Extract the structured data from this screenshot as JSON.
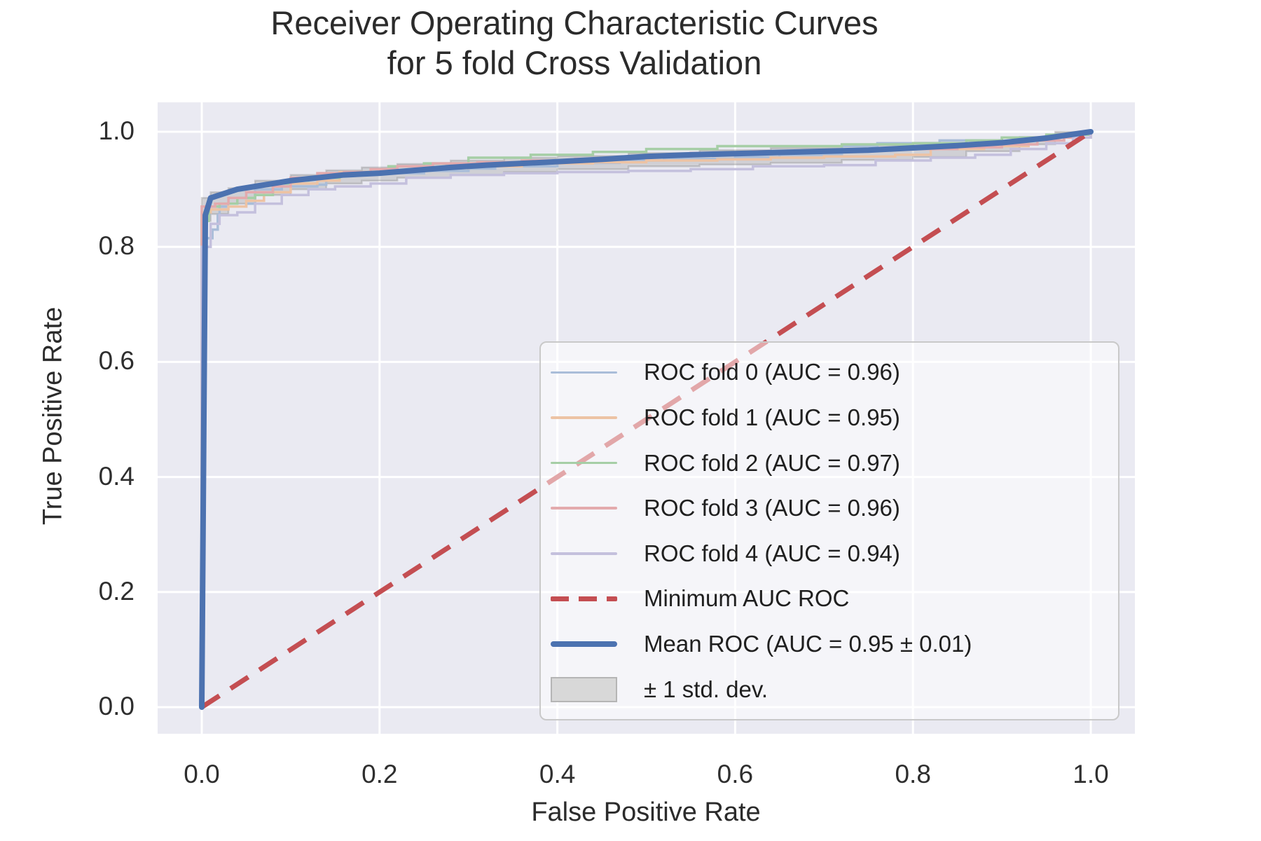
{
  "figure": {
    "title_line1": "Receiver Operating Characteristic Curves",
    "title_line2": "for 5 fold Cross Validation"
  },
  "chart_data": {
    "type": "line",
    "title": "Receiver Operating Characteristic Curves for 5 fold Cross Validation",
    "xlabel": "False Positive Rate",
    "ylabel": "True Positive Rate",
    "xlim": [
      -0.05,
      1.05
    ],
    "ylim": [
      -0.05,
      1.05
    ],
    "grid": true,
    "legend_position": "lower right",
    "background": "#eaeaf2",
    "gridline_color": "#ffffff",
    "tick_values": [
      0.0,
      0.2,
      0.4,
      0.6,
      0.8,
      1.0
    ],
    "x_tick_labels": [
      "0.0",
      "0.2",
      "0.4",
      "0.6",
      "0.8",
      "1.0"
    ],
    "y_tick_labels": [
      "0.0",
      "0.2",
      "0.4",
      "0.6",
      "0.8",
      "1.0"
    ],
    "series": [
      {
        "name": "ROC fold 0",
        "auc": 0.96,
        "color": "#a9bdd9",
        "style": "step",
        "points": [
          [
            0,
            0
          ],
          [
            0,
            0.815
          ],
          [
            0.012,
            0.83
          ],
          [
            0.018,
            0.855
          ],
          [
            0.02,
            0.87
          ],
          [
            0.05,
            0.875
          ],
          [
            0.06,
            0.9
          ],
          [
            0.09,
            0.905
          ],
          [
            0.13,
            0.908
          ],
          [
            0.14,
            0.925
          ],
          [
            0.17,
            0.928
          ],
          [
            0.25,
            0.932
          ],
          [
            0.3,
            0.936
          ],
          [
            0.33,
            0.94
          ],
          [
            0.4,
            0.946
          ],
          [
            0.47,
            0.95
          ],
          [
            0.52,
            0.953
          ],
          [
            0.6,
            0.956
          ],
          [
            0.65,
            0.96
          ],
          [
            0.72,
            0.975
          ],
          [
            0.76,
            0.98
          ],
          [
            0.83,
            0.985
          ],
          [
            0.9,
            0.99
          ],
          [
            0.96,
            0.995
          ],
          [
            1,
            1
          ]
        ]
      },
      {
        "name": "ROC fold 1",
        "auc": 0.95,
        "color": "#edc3a4",
        "style": "step",
        "points": [
          [
            0,
            0
          ],
          [
            0,
            0.86
          ],
          [
            0.01,
            0.865
          ],
          [
            0.03,
            0.87
          ],
          [
            0.05,
            0.88
          ],
          [
            0.07,
            0.895
          ],
          [
            0.1,
            0.91
          ],
          [
            0.13,
            0.915
          ],
          [
            0.155,
            0.93
          ],
          [
            0.2,
            0.933
          ],
          [
            0.24,
            0.937
          ],
          [
            0.3,
            0.94
          ],
          [
            0.36,
            0.945
          ],
          [
            0.44,
            0.947
          ],
          [
            0.5,
            0.95
          ],
          [
            0.58,
            0.952
          ],
          [
            0.64,
            0.955
          ],
          [
            0.7,
            0.957
          ],
          [
            0.78,
            0.96
          ],
          [
            0.82,
            0.97
          ],
          [
            0.88,
            0.975
          ],
          [
            0.93,
            0.985
          ],
          [
            0.97,
            0.99
          ],
          [
            1,
            1
          ]
        ]
      },
      {
        "name": "ROC fold 2",
        "auc": 0.97,
        "color": "#a6cea6",
        "style": "step",
        "points": [
          [
            0,
            0
          ],
          [
            0,
            0.845
          ],
          [
            0.008,
            0.87
          ],
          [
            0.02,
            0.875
          ],
          [
            0.04,
            0.885
          ],
          [
            0.06,
            0.89
          ],
          [
            0.08,
            0.91
          ],
          [
            0.1,
            0.915
          ],
          [
            0.12,
            0.92
          ],
          [
            0.155,
            0.925
          ],
          [
            0.18,
            0.93
          ],
          [
            0.21,
            0.94
          ],
          [
            0.25,
            0.945
          ],
          [
            0.3,
            0.955
          ],
          [
            0.37,
            0.96
          ],
          [
            0.44,
            0.965
          ],
          [
            0.5,
            0.97
          ],
          [
            0.58,
            0.975
          ],
          [
            0.72,
            0.978
          ],
          [
            0.8,
            0.98
          ],
          [
            0.86,
            0.985
          ],
          [
            0.9,
            0.99
          ],
          [
            0.95,
            0.995
          ],
          [
            1,
            1
          ]
        ]
      },
      {
        "name": "ROC fold 3",
        "auc": 0.96,
        "color": "#e3aaad",
        "style": "step",
        "points": [
          [
            0,
            0
          ],
          [
            0,
            0.87
          ],
          [
            0.015,
            0.875
          ],
          [
            0.03,
            0.885
          ],
          [
            0.05,
            0.895
          ],
          [
            0.08,
            0.905
          ],
          [
            0.1,
            0.92
          ],
          [
            0.13,
            0.928
          ],
          [
            0.16,
            0.93
          ],
          [
            0.19,
            0.935
          ],
          [
            0.22,
            0.94
          ],
          [
            0.26,
            0.945
          ],
          [
            0.31,
            0.947
          ],
          [
            0.36,
            0.95
          ],
          [
            0.42,
            0.953
          ],
          [
            0.48,
            0.957
          ],
          [
            0.55,
            0.963
          ],
          [
            0.62,
            0.966
          ],
          [
            0.7,
            0.968
          ],
          [
            0.78,
            0.97
          ],
          [
            0.85,
            0.973
          ],
          [
            0.9,
            0.978
          ],
          [
            0.94,
            0.985
          ],
          [
            0.97,
            0.99
          ],
          [
            1,
            1
          ]
        ]
      },
      {
        "name": "ROC fold 4",
        "auc": 0.94,
        "color": "#c4c0dd",
        "style": "step",
        "points": [
          [
            0,
            0
          ],
          [
            0,
            0.8
          ],
          [
            0.01,
            0.84
          ],
          [
            0.02,
            0.855
          ],
          [
            0.04,
            0.86
          ],
          [
            0.06,
            0.875
          ],
          [
            0.09,
            0.89
          ],
          [
            0.12,
            0.9
          ],
          [
            0.15,
            0.905
          ],
          [
            0.19,
            0.91
          ],
          [
            0.23,
            0.92
          ],
          [
            0.28,
            0.925
          ],
          [
            0.34,
            0.928
          ],
          [
            0.4,
            0.93
          ],
          [
            0.48,
            0.932
          ],
          [
            0.55,
            0.935
          ],
          [
            0.62,
            0.94
          ],
          [
            0.7,
            0.942
          ],
          [
            0.758,
            0.95
          ],
          [
            0.82,
            0.955
          ],
          [
            0.87,
            0.96
          ],
          [
            0.91,
            0.97
          ],
          [
            0.95,
            0.98
          ],
          [
            0.98,
            0.99
          ],
          [
            1,
            1
          ]
        ]
      }
    ],
    "min_auc_line": {
      "label": "Minimum AUC ROC",
      "color": "#c44e52",
      "dashed": true,
      "points": [
        [
          0,
          0
        ],
        [
          1,
          1
        ]
      ]
    },
    "mean_roc": {
      "label": "Mean ROC (AUC = 0.95 ± 0.01)",
      "auc": 0.95,
      "auc_std": 0.01,
      "color": "#4c72b0",
      "points": [
        [
          0,
          0
        ],
        [
          0.004,
          0.855
        ],
        [
          0.01,
          0.885
        ],
        [
          0.02,
          0.89
        ],
        [
          0.04,
          0.9
        ],
        [
          0.06,
          0.905
        ],
        [
          0.08,
          0.91
        ],
        [
          0.1,
          0.915
        ],
        [
          0.13,
          0.92
        ],
        [
          0.16,
          0.925
        ],
        [
          0.2,
          0.928
        ],
        [
          0.24,
          0.933
        ],
        [
          0.28,
          0.938
        ],
        [
          0.32,
          0.942
        ],
        [
          0.36,
          0.945
        ],
        [
          0.4,
          0.948
        ],
        [
          0.45,
          0.952
        ],
        [
          0.5,
          0.957
        ],
        [
          0.55,
          0.96
        ],
        [
          0.6,
          0.962
        ],
        [
          0.65,
          0.964
        ],
        [
          0.7,
          0.966
        ],
        [
          0.75,
          0.968
        ],
        [
          0.8,
          0.972
        ],
        [
          0.85,
          0.976
        ],
        [
          0.9,
          0.981
        ],
        [
          0.95,
          0.989
        ],
        [
          1,
          1
        ]
      ]
    },
    "std_band": {
      "label": "± 1 std. dev.",
      "fill": "#8c8c8c",
      "x": [
        0,
        0.01,
        0.03,
        0.06,
        0.1,
        0.14,
        0.18,
        0.22,
        0.28,
        0.34,
        0.4,
        0.48,
        0.56,
        0.64,
        0.72,
        0.8,
        0.86,
        0.92,
        0.96,
        1.0
      ],
      "upper": [
        0.885,
        0.895,
        0.902,
        0.915,
        0.925,
        0.933,
        0.938,
        0.944,
        0.95,
        0.955,
        0.958,
        0.963,
        0.968,
        0.972,
        0.977,
        0.981,
        0.985,
        0.991,
        0.997,
        1.0
      ],
      "lower": [
        0.82,
        0.845,
        0.857,
        0.875,
        0.89,
        0.9,
        0.91,
        0.915,
        0.92,
        0.925,
        0.93,
        0.935,
        0.94,
        0.943,
        0.946,
        0.951,
        0.956,
        0.966,
        0.978,
        1.0
      ]
    }
  },
  "legend": {
    "entries": [
      {
        "label": "ROC fold 0 (AUC = 0.96)",
        "swatch": "line",
        "color": "#a9bdd9"
      },
      {
        "label": "ROC fold 1 (AUC = 0.95)",
        "swatch": "line",
        "color": "#edc3a4"
      },
      {
        "label": "ROC fold 2 (AUC = 0.97)",
        "swatch": "line",
        "color": "#a6cea6"
      },
      {
        "label": "ROC fold 3 (AUC = 0.96)",
        "swatch": "line",
        "color": "#e3aaad"
      },
      {
        "label": "ROC fold 4 (AUC = 0.94)",
        "swatch": "line",
        "color": "#c4c0dd"
      },
      {
        "label": "Minimum AUC ROC",
        "swatch": "dashed",
        "color": "#c44e52"
      },
      {
        "label": "Mean ROC (AUC = 0.95 ± 0.01)",
        "swatch": "thick-line",
        "color": "#4c72b0"
      },
      {
        "label": "± 1 std. dev.",
        "swatch": "patch",
        "color": "#d8d8d8"
      }
    ]
  }
}
